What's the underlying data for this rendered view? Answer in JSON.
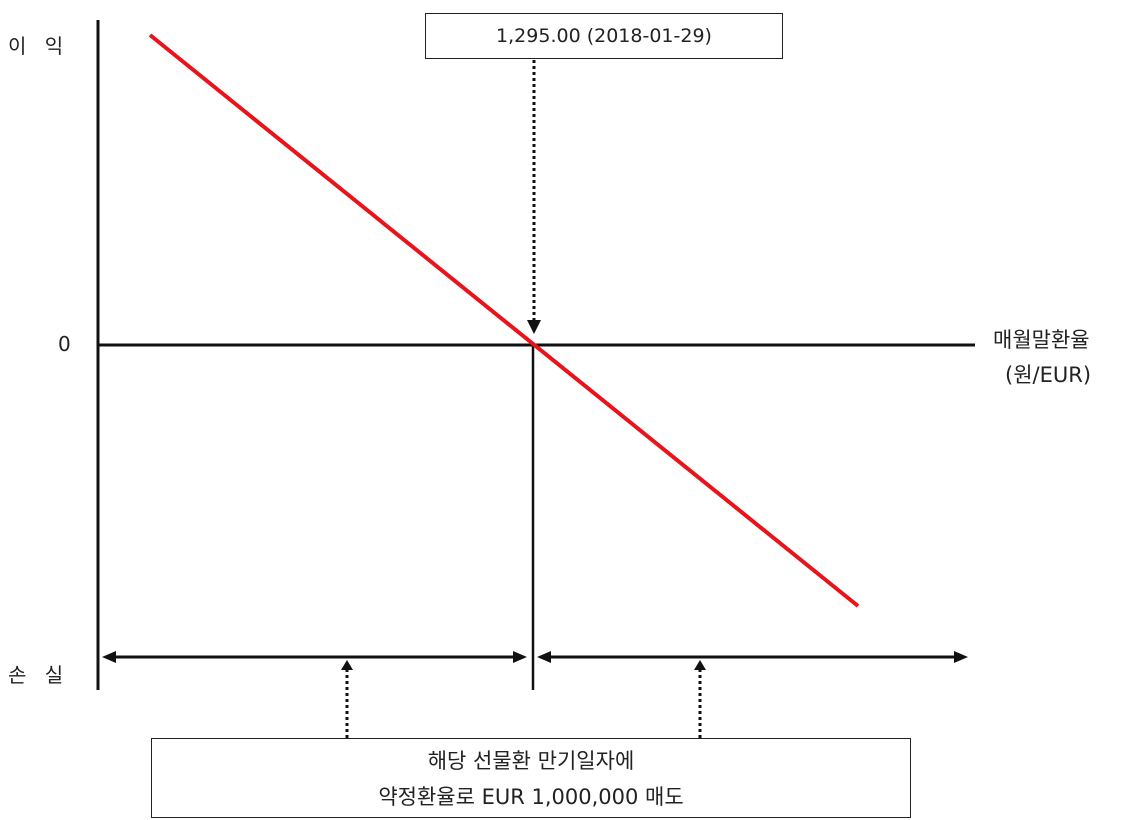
{
  "labels": {
    "profit": "이 익",
    "loss": "손 실",
    "zero": "0",
    "x_axis_line1": "매월말환율",
    "x_axis_line2": "(원/EUR)"
  },
  "callouts": {
    "strike": "1,295.00 (2018-01-29)",
    "note_line1": "해당 선물환 만기일자에",
    "note_line2": "약정환율로 EUR 1,000,000 매도"
  },
  "colors": {
    "payoff_line": "#e8141b",
    "axis": "#111111"
  }
}
